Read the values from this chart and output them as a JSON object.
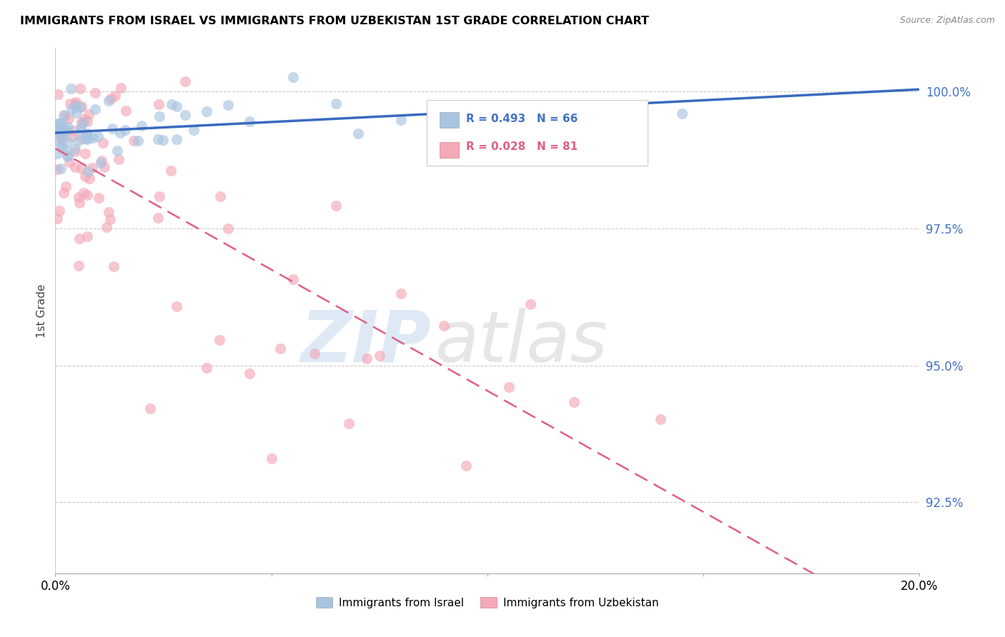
{
  "title": "IMMIGRANTS FROM ISRAEL VS IMMIGRANTS FROM UZBEKISTAN 1ST GRADE CORRELATION CHART",
  "source": "Source: ZipAtlas.com",
  "ylabel": "1st Grade",
  "y_ticks": [
    92.5,
    95.0,
    97.5,
    100.0
  ],
  "y_tick_labels": [
    "92.5%",
    "95.0%",
    "97.5%",
    "100.0%"
  ],
  "x_min": 0.0,
  "x_max": 20.0,
  "y_min": 91.2,
  "y_max": 100.8,
  "israel_color": "#a8c4e0",
  "uzbekistan_color": "#f4a8b8",
  "israel_line_color": "#3a6abf",
  "uzbekistan_line_color": "#e06080",
  "israel_R": 0.493,
  "israel_N": 66,
  "uzbekistan_R": 0.028,
  "uzbekistan_N": 81,
  "legend_israel": "Immigrants from Israel",
  "legend_uzbekistan": "Immigrants from Uzbekistan",
  "watermark_zip": "ZIP",
  "watermark_atlas": "atlas",
  "watermark_color_zip": "#c5d8ef",
  "watermark_color_atlas": "#c8c8c8"
}
